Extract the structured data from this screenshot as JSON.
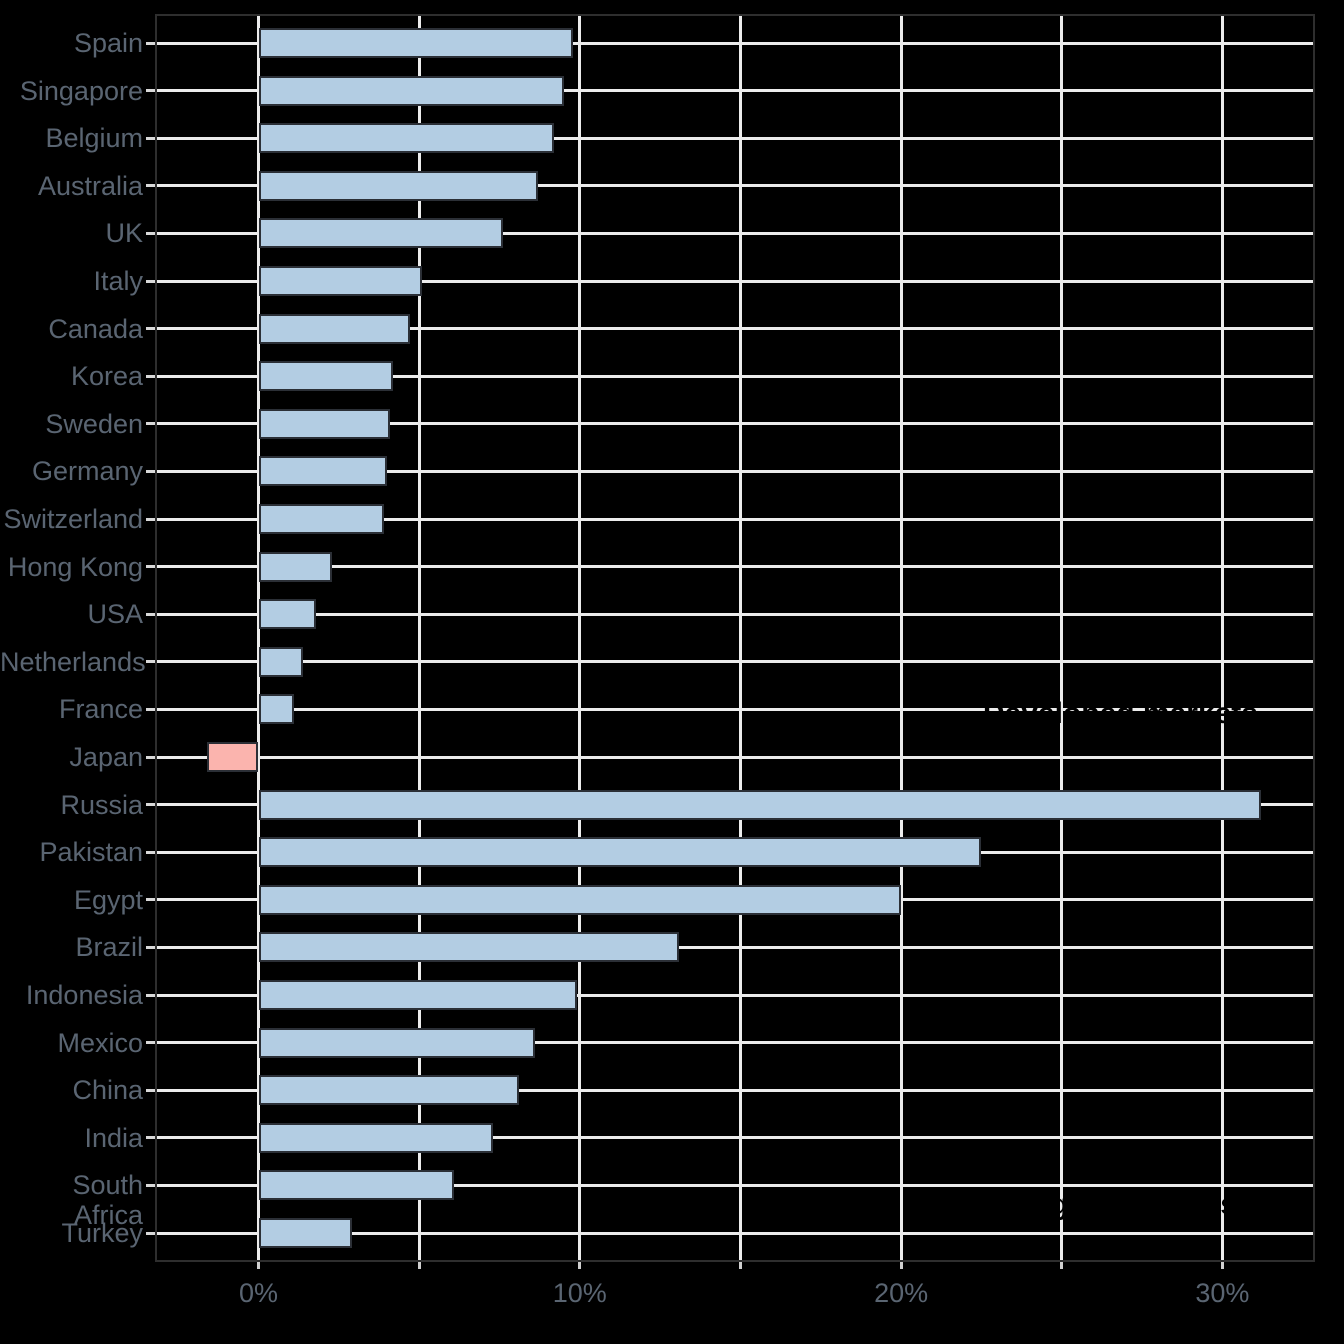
{
  "chart": {
    "background_color": "#000000",
    "grid_color": "#ececec",
    "spine_color": "#2e2e2e",
    "label_color": "#5a6572",
    "annotation_color": "#000000"
  },
  "annotations": {
    "developed": "Developed markets",
    "emerging": "Emerging markets"
  },
  "chart_data": {
    "type": "bar",
    "orientation": "horizontal",
    "title": "",
    "xlabel": "",
    "ylabel": "",
    "categories": [
      "Spain",
      "Singapore",
      "Belgium",
      "Australia",
      "UK",
      "Italy",
      "Canada",
      "Korea",
      "Sweden",
      "Germany",
      "Switzerland",
      "Hong Kong",
      "USA",
      "Netherlands",
      "France",
      "Japan",
      "Russia",
      "Pakistan",
      "Egypt",
      "Brazil",
      "Indonesia",
      "Mexico",
      "China",
      "India",
      "South Africa",
      "Turkey"
    ],
    "values": [
      9.8,
      9.5,
      9.2,
      8.7,
      7.6,
      5.1,
      4.7,
      4.2,
      4.1,
      4.0,
      3.9,
      2.3,
      1.8,
      1.4,
      1.1,
      -1.6,
      31.2,
      22.5,
      20.0,
      13.1,
      9.9,
      8.6,
      8.1,
      7.3,
      6.1,
      2.9
    ],
    "unit": "%",
    "bar_color": "#b3cde3",
    "highlight_category": "Japan",
    "highlight_color": "#fbb4ae",
    "bar_edge_color": "#2b2f36",
    "xlim": [
      -3.2,
      32.9
    ],
    "x_major_ticks": [
      0,
      10,
      20,
      30
    ],
    "x_major_tick_labels": [
      "0%",
      "10%",
      "20%",
      "30%"
    ],
    "x_minor_tick_step": 5,
    "grid": true,
    "legend": false,
    "annotations": [
      {
        "text": "Developed markets",
        "anchor_category": "France",
        "align": "right"
      },
      {
        "text": "Emerging markets",
        "anchor_category": "South Africa",
        "align": "right"
      }
    ]
  }
}
